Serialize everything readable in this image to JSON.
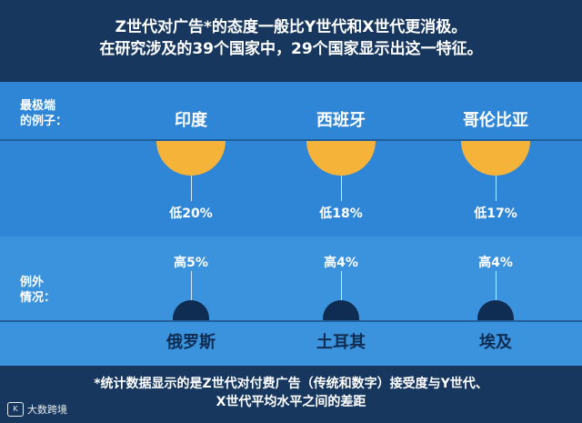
{
  "header": {
    "line1": "Z世代对广告*的态度一般比Y世代和X世代更消极。",
    "line2": "在研究涉及的39个国家中，29个国家显示出这一特征。"
  },
  "top_section": {
    "label_line1": "最极端",
    "label_line2": "的例子：",
    "items": [
      {
        "country": "印度",
        "stat": "低20%"
      },
      {
        "country": "西班牙",
        "stat": "低18%"
      },
      {
        "country": "哥伦比亚",
        "stat": "低17%"
      }
    ]
  },
  "bottom_section": {
    "label_line1": "例外",
    "label_line2": "情况：",
    "items": [
      {
        "country": "俄罗斯",
        "stat": "高5%"
      },
      {
        "country": "土耳其",
        "stat": "高4%"
      },
      {
        "country": "埃及",
        "stat": "高4%"
      }
    ]
  },
  "footer": {
    "line1": "*统计数据显示的是Z世代对付费广告（传统和数字）接受度与Y世代、",
    "line2": "X世代平均水平之间的差距"
  },
  "logo": {
    "text": "大数跨境",
    "mark": "K"
  },
  "colors": {
    "background": "#17375e",
    "top_panel": "#2f86d6",
    "bottom_panel": "#3c93dd",
    "negative_marker": "#f6b339",
    "positive_marker": "#0f2d52"
  }
}
